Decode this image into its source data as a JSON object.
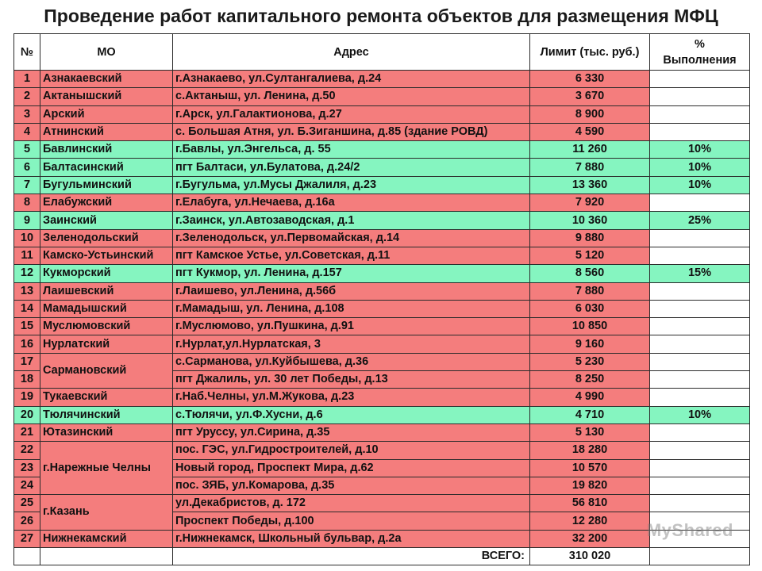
{
  "title": "Проведение работ капитального ремонта объектов для размещения МФЦ",
  "headers": {
    "num": "№",
    "mo": "МО",
    "address": "Адрес",
    "limit": "Лимит (тыс. руб.)",
    "percent_line1": "%",
    "percent_line2": "Выполнения"
  },
  "rows": [
    {
      "num": "1",
      "mo": "Азнакаевский",
      "address": "г.Азнакаево, ул.Султангалиева, д.24",
      "limit": "6 330",
      "percent": "",
      "status": "red"
    },
    {
      "num": "2",
      "mo": "Актанышский",
      "address": "с.Актаныш, ул. Ленина, д.50",
      "limit": "3 670",
      "percent": "",
      "status": "red"
    },
    {
      "num": "3",
      "mo": "Арский",
      "address": "г.Арск, ул.Галактионова, д.27",
      "limit": "8 900",
      "percent": "",
      "status": "red"
    },
    {
      "num": "4",
      "mo": "Атнинский",
      "address": "с. Большая Атня, ул. Б.Зиганшина, д.85 (здание РОВД)",
      "limit": "4 590",
      "percent": "",
      "status": "red"
    },
    {
      "num": "5",
      "mo": "Бавлинский",
      "address": "г.Бавлы, ул.Энгельса, д. 55",
      "limit": "11 260",
      "percent": "10%",
      "status": "green"
    },
    {
      "num": "6",
      "mo": "Балтасинский",
      "address": "пгт Балтаси, ул.Булатова, д.24/2",
      "limit": "7 880",
      "percent": "10%",
      "status": "green"
    },
    {
      "num": "7",
      "mo": "Бугульминский",
      "address": "г.Бугульма, ул.Мусы Джалиля, д.23",
      "limit": "13 360",
      "percent": "10%",
      "status": "green"
    },
    {
      "num": "8",
      "mo": "Елабужский",
      "address": "г.Елабуга, ул.Нечаева, д.16а",
      "limit": "7 920",
      "percent": "",
      "status": "red"
    },
    {
      "num": "9",
      "mo": "Заинский",
      "address": "г.Заинск, ул.Автозаводская, д.1",
      "limit": "10 360",
      "percent": "25%",
      "status": "green"
    },
    {
      "num": "10",
      "mo": "Зеленодольский",
      "address": "г.Зеленодольск, ул.Первомайская, д.14",
      "limit": "9 880",
      "percent": "",
      "status": "red"
    },
    {
      "num": "11",
      "mo": "Камско-Устьинский",
      "address": "пгт Камское Устье, ул.Советская, д.11",
      "limit": "5 120",
      "percent": "",
      "status": "red"
    },
    {
      "num": "12",
      "mo": "Кукморский",
      "address": "пгт Кукмор, ул. Ленина, д.157",
      "limit": "8 560",
      "percent": "15%",
      "status": "green"
    },
    {
      "num": "13",
      "mo": "Лаишевский",
      "address": "г.Лаишево, ул.Ленина, д.56б",
      "limit": "7 880",
      "percent": "",
      "status": "red"
    },
    {
      "num": "14",
      "mo": "Мамадышский",
      "address": "г.Мамадыш, ул. Ленина, д.108",
      "limit": "6 030",
      "percent": "",
      "status": "red"
    },
    {
      "num": "15",
      "mo": "Муслюмовский",
      "address": "г.Муслюмово, ул.Пушкина, д.91",
      "limit": "10 850",
      "percent": "",
      "status": "red"
    },
    {
      "num": "16",
      "mo": "Нурлатский",
      "address": "г.Нурлат,ул.Нурлатская, 3",
      "limit": "9 160",
      "percent": "",
      "status": "red"
    },
    {
      "num": "17",
      "mo": "Сармановский",
      "address": "с.Сарманова, ул.Куйбышева, д.36",
      "limit": "5 230",
      "percent": "",
      "status": "red"
    },
    {
      "num": "18",
      "mo": "",
      "address": "пгт Джалиль, ул. 30 лет Победы, д.13",
      "limit": "8 250",
      "percent": "",
      "status": "red"
    },
    {
      "num": "19",
      "mo": "Тукаевский",
      "address": "г.Наб.Челны, ул.М.Жукова, д.23",
      "limit": "4 990",
      "percent": "",
      "status": "red"
    },
    {
      "num": "20",
      "mo": "Тюлячинский",
      "address": "с.Тюлячи, ул.Ф.Хусни, д.6",
      "limit": "4 710",
      "percent": "10%",
      "status": "green"
    },
    {
      "num": "21",
      "mo": "Ютазинский",
      "address": "пгт Уруссу, ул.Сирина, д.35",
      "limit": "5 130",
      "percent": "",
      "status": "red"
    },
    {
      "num": "22",
      "mo": "г.Нарежные Челны",
      "address": "пос. ГЭС, ул.Гидростроителей, д.10",
      "limit": "18 280",
      "percent": "",
      "status": "red"
    },
    {
      "num": "23",
      "mo": "",
      "address": "Новый город, Проспект Мира, д.62",
      "limit": "10 570",
      "percent": "",
      "status": "red"
    },
    {
      "num": "24",
      "mo": "",
      "address": "пос. ЗЯБ, ул.Комарова, д.35",
      "limit": "19 820",
      "percent": "",
      "status": "red"
    },
    {
      "num": "25",
      "mo": "г.Казань",
      "address": "ул.Декабристов, д. 172",
      "limit": "56 810",
      "percent": "",
      "status": "red"
    },
    {
      "num": "26",
      "mo": "",
      "address": "Проспект Победы, д.100",
      "limit": "12 280",
      "percent": "",
      "status": "red"
    },
    {
      "num": "27",
      "mo": "Нижнекамский",
      "address": "г.Нижнекамск, Школьный бульвар, д.2а",
      "limit": "32 200",
      "percent": "",
      "status": "red"
    }
  ],
  "total": {
    "label": "ВСЕГО:",
    "value": "310 020"
  },
  "watermark": "MyShared",
  "colors": {
    "red": "#f47d7d",
    "green": "#85f5c0",
    "header_bg": "#ffffff"
  }
}
